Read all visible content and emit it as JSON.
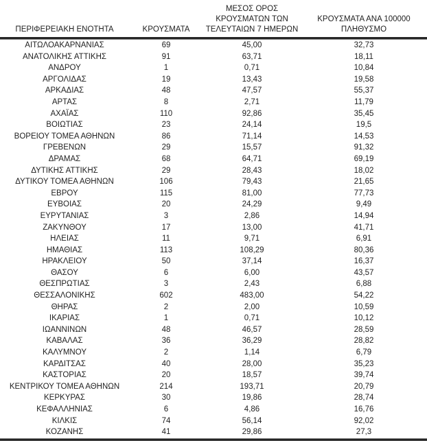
{
  "table": {
    "title_semantic": "ΚΡΟΥΣΜΑΤΑ ΑΝΑ ΠΕΡΙΦΕΡΕΙΑΚΗ ΕΝΟΤΗΤΑ",
    "columns": [
      {
        "key": "region",
        "label": "ΠΕΡΙΦΕΡΕΙΑΚΗ ΕΝΟΤΗΤΑ"
      },
      {
        "key": "cases",
        "label": "ΚΡΟΥΣΜΑΤΑ"
      },
      {
        "key": "avg7day",
        "label": "ΜΕΣΟΣ ΟΡΟΣ\nΚΡΟΥΣΜΑΤΩΝ ΤΩΝ\nΤΕΛΕΥΤΑΙΩΝ 7 ΗΜΕΡΩΝ"
      },
      {
        "key": "per100k",
        "label": "ΚΡΟΥΣΜΑΤΑ ΑΝΑ 100000\nΠΛΗΘΥΣΜΟ"
      }
    ],
    "rows": [
      [
        "ΑΙΤΩΛΟΑΚΑΡΝΑΝΙΑΣ",
        "69",
        "45,00",
        "32,73"
      ],
      [
        "ΑΝΑΤΟΛΙΚΗΣ ΑΤΤΙΚΗΣ",
        "91",
        "63,71",
        "18,11"
      ],
      [
        "ΑΝΔΡΟΥ",
        "1",
        "0,71",
        "10,84"
      ],
      [
        "ΑΡΓΟΛΙΔΑΣ",
        "19",
        "13,43",
        "19,58"
      ],
      [
        "ΑΡΚΑΔΙΑΣ",
        "48",
        "47,57",
        "55,37"
      ],
      [
        "ΑΡΤΑΣ",
        "8",
        "2,71",
        "11,79"
      ],
      [
        "ΑΧΑΪΑΣ",
        "110",
        "92,86",
        "35,45"
      ],
      [
        "ΒΟΙΩΤΙΑΣ",
        "23",
        "24,14",
        "19,5"
      ],
      [
        "ΒΟΡΕΙΟΥ ΤΟΜΕΑ ΑΘΗΝΩΝ",
        "86",
        "71,14",
        "14,53"
      ],
      [
        "ΓΡΕΒΕΝΩΝ",
        "29",
        "15,57",
        "91,32"
      ],
      [
        "ΔΡΑΜΑΣ",
        "68",
        "64,71",
        "69,19"
      ],
      [
        "ΔΥΤΙΚΗΣ ΑΤΤΙΚΗΣ",
        "29",
        "28,43",
        "18,02"
      ],
      [
        "ΔΥΤΙΚΟΥ ΤΟΜΕΑ ΑΘΗΝΩΝ",
        "106",
        "79,43",
        "21,65"
      ],
      [
        "ΕΒΡΟΥ",
        "115",
        "81,00",
        "77,73"
      ],
      [
        "ΕΥΒΟΙΑΣ",
        "20",
        "24,29",
        "9,49"
      ],
      [
        "ΕΥΡΥΤΑΝΙΑΣ",
        "3",
        "2,86",
        "14,94"
      ],
      [
        "ΖΑΚΥΝΘΟΥ",
        "17",
        "13,00",
        "41,71"
      ],
      [
        "ΗΛΕΙΑΣ",
        "11",
        "9,71",
        "6,91"
      ],
      [
        "ΗΜΑΘΙΑΣ",
        "113",
        "108,29",
        "80,36"
      ],
      [
        "ΗΡΑΚΛΕΙΟΥ",
        "50",
        "37,14",
        "16,37"
      ],
      [
        "ΘΑΣΟΥ",
        "6",
        "6,00",
        "43,57"
      ],
      [
        "ΘΕΣΠΡΩΤΙΑΣ",
        "3",
        "2,43",
        "6,88"
      ],
      [
        "ΘΕΣΣΑΛΟΝΙΚΗΣ",
        "602",
        "483,00",
        "54,22"
      ],
      [
        "ΘΗΡΑΣ",
        "2",
        "2,00",
        "10,59"
      ],
      [
        "ΙΚΑΡΙΑΣ",
        "1",
        "0,71",
        "10,12"
      ],
      [
        "ΙΩΑΝΝΙΝΩΝ",
        "48",
        "46,57",
        "28,59"
      ],
      [
        "ΚΑΒΑΛΑΣ",
        "36",
        "36,29",
        "28,82"
      ],
      [
        "ΚΑΛΥΜΝΟΥ",
        "2",
        "1,14",
        "6,79"
      ],
      [
        "ΚΑΡΔΙΤΣΑΣ",
        "40",
        "28,00",
        "35,23"
      ],
      [
        "ΚΑΣΤΟΡΙΑΣ",
        "20",
        "18,57",
        "39,74"
      ],
      [
        "ΚΕΝΤΡΙΚΟΥ ΤΟΜΕΑ ΑΘΗΝΩΝ",
        "214",
        "193,71",
        "20,79"
      ],
      [
        "ΚΕΡΚΥΡΑΣ",
        "30",
        "19,86",
        "28,74"
      ],
      [
        "ΚΕΦΑΛΛΗΝΙΑΣ",
        "6",
        "4,86",
        "16,76"
      ],
      [
        "ΚΙΛΚΙΣ",
        "74",
        "56,14",
        "92,02"
      ],
      [
        "ΚΟΖΑΝΗΣ",
        "41",
        "29,86",
        "27,3"
      ]
    ],
    "styles": {
      "rule_thick_color": "#262626",
      "rule_thin_color": "#8f8f8f",
      "text_color": "#1f1f1f"
    }
  }
}
